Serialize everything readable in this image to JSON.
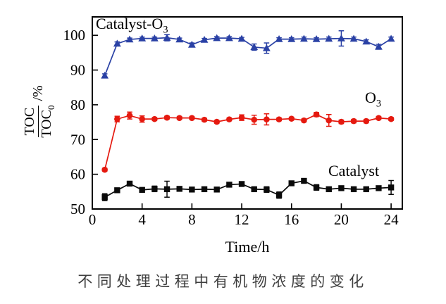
{
  "figure": {
    "caption": "不同处理过程中有机物浓度的变化",
    "xlabel": "Time/h",
    "ylabel_numerator": "TOC",
    "ylabel_denominator": "TOC",
    "ylabel_denominator_sub": "0",
    "ylabel_suffix": "/%"
  },
  "annotations": {
    "catalyst_o3_main": "Catalyst-O",
    "catalyst_o3_sub": "3",
    "o3_main": "O",
    "o3_sub": "3",
    "catalyst": "Catalyst"
  },
  "colors": {
    "catalyst_o3_series": "#2a41a5",
    "o3_series": "#e5190f",
    "catalyst_series": "#0a0a0a",
    "axis": "#000000"
  },
  "chart_data": {
    "type": "line",
    "title": "",
    "xlabel": "Time/h",
    "ylabel": "TOC/TOC0 /%",
    "grid": false,
    "legend_position": "inline-annotations",
    "xlim": [
      0,
      24.9
    ],
    "ylim": [
      50,
      105.3
    ],
    "x_ticks": [
      0,
      4,
      8,
      12,
      16,
      20,
      24
    ],
    "y_ticks": [
      50,
      60,
      70,
      80,
      90,
      100
    ],
    "x": [
      1,
      2,
      3,
      4,
      5,
      6,
      7,
      8,
      9,
      10,
      11,
      12,
      13,
      14,
      15,
      16,
      17,
      18,
      19,
      20,
      21,
      22,
      23,
      24
    ],
    "series": [
      {
        "name": "Catalyst-O3",
        "marker": "triangle",
        "color": "#2a41a5",
        "values": [
          88.4,
          97.6,
          98.8,
          99.1,
          99.1,
          99.3,
          98.8,
          97.3,
          98.7,
          99.2,
          99.2,
          99.0,
          96.6,
          96.3,
          98.9,
          98.9,
          99.0,
          98.9,
          99.0,
          99.1,
          99.0,
          98.2,
          96.7,
          99.0
        ],
        "errors": [
          0.5,
          0.5,
          0.4,
          0.4,
          0.4,
          0.9,
          0.4,
          0.5,
          0.4,
          0.4,
          0.4,
          0.4,
          0.9,
          1.5,
          0.4,
          0.4,
          0.5,
          0.4,
          0.5,
          2.2,
          0.5,
          0.5,
          0.7,
          0.5
        ]
      },
      {
        "name": "O3",
        "marker": "circle",
        "color": "#e5190f",
        "values": [
          61.3,
          75.9,
          76.9,
          75.9,
          75.9,
          76.3,
          76.2,
          76.2,
          75.7,
          75.1,
          75.8,
          76.3,
          75.7,
          75.8,
          75.8,
          76.0,
          75.5,
          77.2,
          75.5,
          75.1,
          75.3,
          75.3,
          76.2,
          75.9
        ],
        "errors": [
          0.4,
          0.8,
          1.0,
          0.9,
          0.4,
          0.4,
          0.4,
          0.4,
          0.4,
          0.4,
          0.4,
          0.8,
          1.3,
          1.6,
          0.4,
          0.4,
          0.4,
          0.6,
          1.7,
          0.5,
          0.5,
          0.5,
          0.4,
          0.4
        ]
      },
      {
        "name": "Catalyst",
        "marker": "square",
        "color": "#0a0a0a",
        "values": [
          53.4,
          55.4,
          57.3,
          55.5,
          55.8,
          55.7,
          55.8,
          55.6,
          55.7,
          55.6,
          57.0,
          57.2,
          55.7,
          55.6,
          54.0,
          57.4,
          58.1,
          56.2,
          55.7,
          56.0,
          55.7,
          55.7,
          56.0,
          56.2
        ],
        "errors": [
          1.0,
          0.4,
          0.4,
          0.4,
          0.8,
          2.3,
          0.4,
          0.4,
          0.4,
          0.4,
          0.4,
          0.4,
          0.4,
          0.8,
          0.9,
          0.4,
          0.4,
          0.8,
          0.4,
          0.4,
          0.4,
          0.4,
          0.4,
          2.0
        ]
      }
    ]
  }
}
